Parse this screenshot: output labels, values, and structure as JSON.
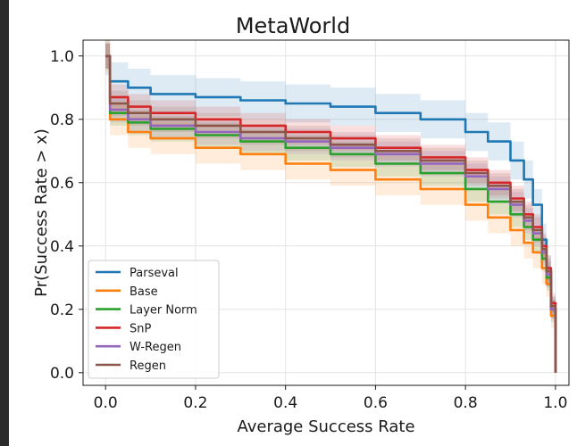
{
  "chart_data": {
    "type": "line",
    "title": "MetaWorld",
    "xlabel": "Average Success Rate",
    "ylabel": "Pr(Success Rate > x)",
    "xlim": [
      -0.05,
      1.03
    ],
    "ylim": [
      -0.04,
      1.05
    ],
    "xticks": [
      0.0,
      0.2,
      0.4,
      0.6,
      0.8,
      1.0
    ],
    "yticks": [
      0.0,
      0.2,
      0.4,
      0.6,
      0.8,
      1.0
    ],
    "grid": true,
    "legend_position": "lower-left",
    "series": [
      {
        "name": "Parseval",
        "color": "#1f77b4",
        "x": [
          0,
          0.01,
          0.05,
          0.1,
          0.2,
          0.3,
          0.4,
          0.5,
          0.6,
          0.7,
          0.8,
          0.85,
          0.9,
          0.93,
          0.95,
          0.97,
          0.98,
          0.99,
          1.0
        ],
        "y": [
          1.0,
          0.92,
          0.9,
          0.88,
          0.87,
          0.86,
          0.85,
          0.84,
          0.82,
          0.8,
          0.76,
          0.73,
          0.67,
          0.61,
          0.53,
          0.42,
          0.32,
          0.2,
          0.0
        ],
        "band": [
          0.06,
          0.06,
          0.06,
          0.06,
          0.06,
          0.06,
          0.06,
          0.06,
          0.06,
          0.06,
          0.06,
          0.06,
          0.06,
          0.06,
          0.05,
          0.05,
          0.05,
          0.04,
          0.0
        ]
      },
      {
        "name": "Base",
        "color": "#ff7f0e",
        "x": [
          0,
          0.01,
          0.05,
          0.1,
          0.2,
          0.3,
          0.4,
          0.5,
          0.6,
          0.7,
          0.8,
          0.85,
          0.9,
          0.93,
          0.95,
          0.97,
          0.98,
          0.99,
          1.0
        ],
        "y": [
          1.0,
          0.8,
          0.76,
          0.74,
          0.71,
          0.69,
          0.66,
          0.64,
          0.61,
          0.58,
          0.53,
          0.49,
          0.45,
          0.41,
          0.38,
          0.33,
          0.28,
          0.18,
          0.0
        ],
        "band": [
          0.05,
          0.05,
          0.05,
          0.05,
          0.05,
          0.05,
          0.05,
          0.05,
          0.05,
          0.05,
          0.05,
          0.05,
          0.05,
          0.05,
          0.05,
          0.05,
          0.04,
          0.04,
          0.0
        ]
      },
      {
        "name": "Layer Norm",
        "color": "#2ca02c",
        "x": [
          0,
          0.01,
          0.05,
          0.1,
          0.2,
          0.3,
          0.4,
          0.5,
          0.6,
          0.7,
          0.8,
          0.85,
          0.9,
          0.93,
          0.95,
          0.97,
          0.98,
          0.99,
          1.0
        ],
        "y": [
          1.0,
          0.82,
          0.79,
          0.77,
          0.75,
          0.73,
          0.71,
          0.69,
          0.66,
          0.63,
          0.58,
          0.54,
          0.5,
          0.46,
          0.42,
          0.36,
          0.3,
          0.2,
          0.0
        ],
        "band": [
          0.04,
          0.04,
          0.04,
          0.04,
          0.04,
          0.04,
          0.04,
          0.04,
          0.04,
          0.04,
          0.04,
          0.04,
          0.04,
          0.04,
          0.04,
          0.04,
          0.04,
          0.03,
          0.0
        ]
      },
      {
        "name": "SnP",
        "color": "#d62728",
        "x": [
          0,
          0.01,
          0.05,
          0.1,
          0.2,
          0.3,
          0.4,
          0.5,
          0.6,
          0.7,
          0.8,
          0.85,
          0.9,
          0.93,
          0.95,
          0.97,
          0.98,
          0.99,
          1.0
        ],
        "y": [
          1.0,
          0.87,
          0.84,
          0.82,
          0.8,
          0.78,
          0.76,
          0.74,
          0.71,
          0.68,
          0.64,
          0.6,
          0.55,
          0.5,
          0.46,
          0.4,
          0.33,
          0.22,
          0.0
        ],
        "band": [
          0.04,
          0.04,
          0.04,
          0.04,
          0.04,
          0.04,
          0.04,
          0.04,
          0.04,
          0.04,
          0.04,
          0.04,
          0.04,
          0.04,
          0.04,
          0.04,
          0.04,
          0.03,
          0.0
        ]
      },
      {
        "name": "W-Regen",
        "color": "#9467bd",
        "x": [
          0,
          0.01,
          0.05,
          0.1,
          0.2,
          0.3,
          0.4,
          0.5,
          0.6,
          0.7,
          0.8,
          0.85,
          0.9,
          0.93,
          0.95,
          0.97,
          0.98,
          0.99,
          1.0
        ],
        "y": [
          1.0,
          0.83,
          0.8,
          0.78,
          0.76,
          0.74,
          0.73,
          0.71,
          0.69,
          0.66,
          0.62,
          0.58,
          0.53,
          0.48,
          0.44,
          0.38,
          0.31,
          0.2,
          0.0
        ],
        "band": [
          0.04,
          0.04,
          0.04,
          0.04,
          0.04,
          0.04,
          0.04,
          0.04,
          0.04,
          0.04,
          0.04,
          0.04,
          0.04,
          0.04,
          0.04,
          0.04,
          0.04,
          0.03,
          0.0
        ]
      },
      {
        "name": "Regen",
        "color": "#8c564b",
        "x": [
          0,
          0.01,
          0.05,
          0.1,
          0.2,
          0.3,
          0.4,
          0.5,
          0.6,
          0.7,
          0.8,
          0.85,
          0.9,
          0.93,
          0.95,
          0.97,
          0.98,
          0.99,
          1.0
        ],
        "y": [
          1.0,
          0.85,
          0.82,
          0.8,
          0.78,
          0.76,
          0.74,
          0.72,
          0.7,
          0.67,
          0.63,
          0.59,
          0.54,
          0.49,
          0.45,
          0.39,
          0.32,
          0.21,
          0.0
        ],
        "band": [
          0.04,
          0.04,
          0.04,
          0.04,
          0.04,
          0.04,
          0.04,
          0.04,
          0.04,
          0.04,
          0.04,
          0.04,
          0.04,
          0.04,
          0.04,
          0.04,
          0.04,
          0.03,
          0.0
        ]
      }
    ]
  }
}
